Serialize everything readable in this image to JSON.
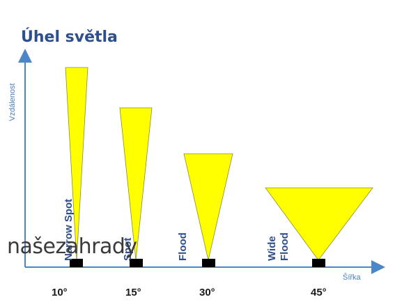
{
  "title": "Úhel světla",
  "y_axis_label": "Vzdálenost",
  "x_axis_label": "Šířka",
  "watermark": "našezahrady",
  "beams": [
    {
      "lines": [
        "Narrow Spot"
      ],
      "angle": "10°"
    },
    {
      "lines": [
        "Spot"
      ],
      "angle": "15°"
    },
    {
      "lines": [
        "Flood"
      ],
      "angle": "30°"
    },
    {
      "lines": [
        "Wide",
        "Flood"
      ],
      "angle": "45°"
    }
  ],
  "colors": {
    "beam_fill": "#ffff00",
    "beam_stroke": "#8a8a3a",
    "axis": "#4a86c8",
    "title": "#2f4e8c"
  }
}
